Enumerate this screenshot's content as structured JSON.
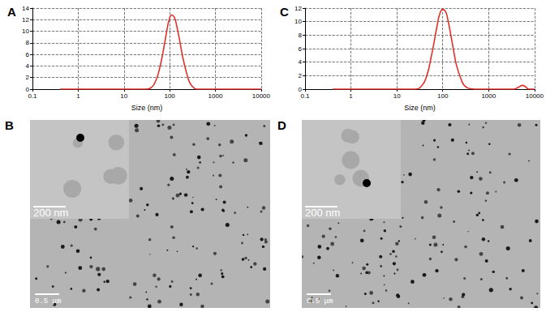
{
  "chart_data": [
    {
      "type": "line",
      "title": "A",
      "x_label": "Size (nm)",
      "log": "x",
      "x": [
        0.4,
        30,
        40,
        50,
        60,
        70,
        80,
        90,
        100,
        110,
        125,
        140,
        160,
        180,
        200,
        240,
        280,
        340,
        400,
        10000
      ],
      "values": [
        0,
        0,
        0.3,
        1.5,
        3.5,
        6,
        8.5,
        10.8,
        12.3,
        12.8,
        12.5,
        11.2,
        9,
        6.8,
        5,
        2.5,
        1,
        0.2,
        0,
        0
      ],
      "color": "#e0302a",
      "xlim": [
        0.1,
        10000
      ],
      "xticks": [
        0.1,
        1,
        10,
        100,
        1000,
        10000
      ],
      "ylim": [
        0,
        14
      ],
      "yticks": [
        0,
        2,
        4,
        6,
        8,
        10,
        12,
        14
      ],
      "grid": true
    },
    {
      "type": "line",
      "title": "C",
      "x_label": "Size (nm)",
      "log": "x",
      "x": [
        0.4,
        25,
        35,
        45,
        55,
        65,
        75,
        85,
        100,
        115,
        130,
        150,
        175,
        200,
        250,
        300,
        400,
        500,
        3500,
        4500,
        5500,
        6500,
        7500,
        10000
      ],
      "values": [
        0,
        0,
        0.5,
        2,
        4.5,
        7,
        9.3,
        11,
        11.8,
        11.5,
        10.2,
        8,
        5.5,
        3.5,
        1.5,
        0.5,
        0.05,
        0,
        0,
        0.3,
        0.55,
        0.3,
        0,
        0
      ],
      "color": "#e0302a",
      "xlim": [
        0.1,
        10000
      ],
      "xticks": [
        0.1,
        1,
        10,
        100,
        1000,
        10000
      ],
      "ylim": [
        0,
        12
      ],
      "yticks": [
        0,
        2,
        4,
        6,
        8,
        10,
        12
      ],
      "grid": true
    }
  ],
  "images": [
    {
      "title": "B",
      "inset_scale_bar": "200 nm",
      "scale_bar": "0.5 μm"
    },
    {
      "title": "D",
      "inset_scale_bar": "200 nm",
      "scale_bar": "0.5 μm"
    }
  ]
}
